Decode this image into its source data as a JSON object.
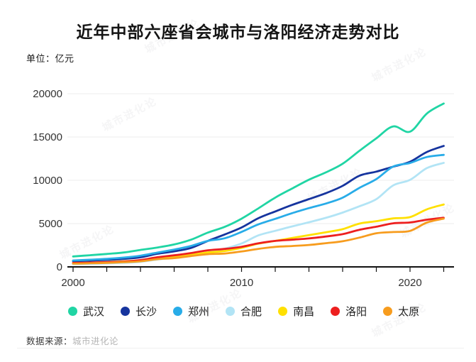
{
  "title": "近年中部六座省会城市与洛阳经济走势对比",
  "unit_label": "单位：亿元",
  "watermark": "城市进化论",
  "source": {
    "prefix": "数据来源：",
    "name": "城市进化论"
  },
  "colors": {
    "title": "#141414",
    "axis": "#111111",
    "tick_label": "#333333",
    "grid": "#ededed",
    "legend_label": "#222222",
    "background": "#ffffff"
  },
  "chart_data": {
    "type": "line",
    "title": "近年中部六座省会城市与洛阳经济走势对比",
    "xlabel": "",
    "ylabel": "亿元",
    "x": [
      2000,
      2001,
      2002,
      2003,
      2004,
      2005,
      2006,
      2007,
      2008,
      2009,
      2010,
      2011,
      2012,
      2013,
      2014,
      2015,
      2016,
      2017,
      2018,
      2019,
      2020,
      2021,
      2022
    ],
    "xlim": [
      2000,
      2022
    ],
    "ylim": [
      0,
      20000
    ],
    "yticks": [
      0,
      5000,
      10000,
      15000,
      20000
    ],
    "xticks_labeled": [
      2000,
      2010,
      2020
    ],
    "xtick_minor_interval_years": 2,
    "grid": "horizontal-light",
    "legend_position": "bottom",
    "series": [
      {
        "id": "wuhan",
        "name": "武汉",
        "color": "#20d5a4",
        "values": [
          1207,
          1348,
          1493,
          1662,
          1956,
          2238,
          2591,
          3142,
          3960,
          4621,
          5566,
          6762,
          8004,
          9051,
          10069,
          10906,
          11913,
          13410,
          14847,
          16223,
          15616,
          17717,
          18866
        ]
      },
      {
        "id": "changsha",
        "name": "长沙",
        "color": "#16349e",
        "values": [
          656,
          728,
          813,
          928,
          1109,
          1520,
          1791,
          2190,
          3001,
          3745,
          4547,
          5619,
          6400,
          7153,
          7825,
          8510,
          9357,
          10536,
          11003,
          11574,
          12143,
          13271,
          13966
        ]
      },
      {
        "id": "zhengzhou",
        "name": "郑州",
        "color": "#28ace8",
        "values": [
          738,
          829,
          928,
          1074,
          1295,
          1650,
          2002,
          2421,
          3004,
          3300,
          4041,
          4913,
          5547,
          6202,
          6783,
          7315,
          7994,
          9130,
          10143,
          11590,
          12003,
          12691,
          12935
        ]
      },
      {
        "id": "hefei",
        "name": "合肥",
        "color": "#b2e4f5",
        "values": [
          325,
          363,
          413,
          478,
          590,
          853,
          1074,
          1334,
          1665,
          2102,
          2702,
          3637,
          4164,
          4672,
          5158,
          5660,
          6274,
          7003,
          7823,
          9409,
          10046,
          11413,
          12013
        ]
      },
      {
        "id": "nanchang",
        "name": "南昌",
        "color": "#ffe000",
        "values": [
          428,
          485,
          552,
          641,
          770,
          1008,
          1185,
          1390,
          1660,
          1838,
          2200,
          2689,
          3001,
          3336,
          3668,
          4000,
          4355,
          5003,
          5275,
          5596,
          5746,
          6651,
          7204
        ]
      },
      {
        "id": "luoyang",
        "name": "洛阳",
        "color": "#ed1f1f",
        "values": [
          460,
          500,
          545,
          618,
          786,
          1112,
          1332,
          1596,
          1920,
          2075,
          2321,
          2723,
          3001,
          3141,
          3284,
          3508,
          3782,
          4290,
          4640,
          5035,
          5128,
          5447,
          5675
        ]
      },
      {
        "id": "taiyuan",
        "name": "太原",
        "color": "#f79c1e",
        "values": [
          373,
          414,
          465,
          545,
          645,
          895,
          1013,
          1254,
          1468,
          1545,
          1778,
          2080,
          2311,
          2412,
          2531,
          2735,
          2955,
          3382,
          3884,
          4028,
          4153,
          5121,
          5571
        ]
      }
    ]
  }
}
